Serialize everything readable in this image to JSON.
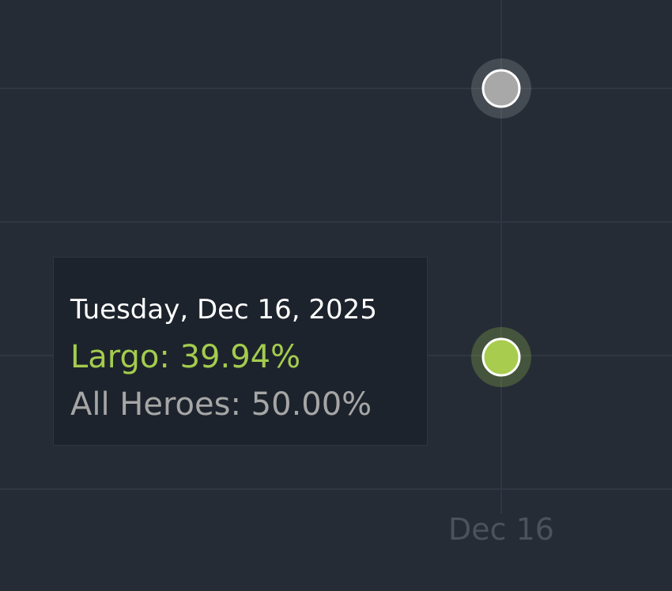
{
  "chart_data": {
    "type": "line",
    "x": [
      "Dec 16"
    ],
    "x_tick_labels": [
      "Dec 16"
    ],
    "series": [
      {
        "name": "Largo",
        "values": [
          39.94
        ],
        "color": "#a8cc4e"
      },
      {
        "name": "All Heroes",
        "values": [
          50.0
        ],
        "color": "#a8a8a8"
      }
    ],
    "y_gridlines": [
      50,
      45,
      40,
      35
    ],
    "grid": true,
    "background": "#252c36",
    "tooltip": {
      "date": "Tuesday, Dec 16, 2025",
      "lines": [
        "Largo: 39.94%",
        "All Heroes: 50.00%"
      ]
    }
  }
}
